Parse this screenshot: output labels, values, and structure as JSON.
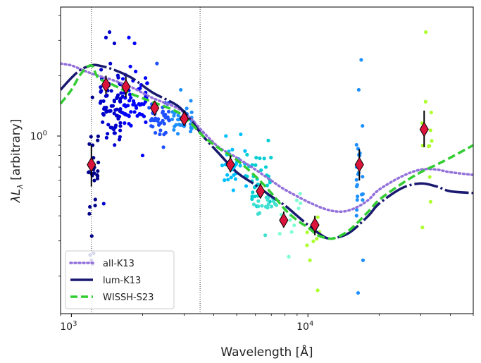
{
  "chart_data": {
    "type": "scatter",
    "xlabel": "Wavelength [Å]",
    "ylabel": "λL",
    "ylabel_sub": "λ",
    "ylabel_rest": " [arbitrary]",
    "xscale": "log",
    "yscale": "log",
    "xlim": [
      900,
      50000
    ],
    "ylim": [
      0.13,
      4.4
    ],
    "x_ticks": [
      {
        "value": 1000,
        "base": "10",
        "exp": "3"
      },
      {
        "value": 10000,
        "base": "10",
        "exp": "4"
      }
    ],
    "y_ticks": [
      {
        "value": 1.0,
        "label": "10",
        "exp": "0"
      }
    ],
    "vlines": [
      1215,
      3500
    ],
    "legend": {
      "placement": "lower-left",
      "entries": [
        {
          "label": "all-K13",
          "color": "#9370db",
          "style": "dotted"
        },
        {
          "label": "lum-K13",
          "color": "#191970",
          "style": "solid"
        },
        {
          "label": "WISSH-S23",
          "color": "#32cd32",
          "style": "dashed"
        }
      ]
    },
    "series": [
      {
        "name": "all-K13",
        "color": "#9370db",
        "style": "dotted",
        "x": [
          900,
          1000,
          1100,
          1215,
          1300,
          1500,
          1800,
          2200,
          2800,
          3200,
          3600,
          4200,
          5000,
          6000,
          7000,
          8000,
          10000,
          12000,
          14000,
          16000,
          18000,
          20000,
          25000,
          30000,
          35000,
          40000,
          50000
        ],
        "y": [
          2.3,
          2.25,
          2.15,
          2.05,
          2.0,
          1.9,
          1.75,
          1.55,
          1.38,
          1.22,
          1.05,
          0.88,
          0.78,
          0.68,
          0.6,
          0.54,
          0.47,
          0.43,
          0.42,
          0.44,
          0.48,
          0.54,
          0.63,
          0.68,
          0.68,
          0.66,
          0.64
        ]
      },
      {
        "name": "lum-K13",
        "color": "#191970",
        "style": "solid",
        "x": [
          900,
          1000,
          1100,
          1215,
          1300,
          1500,
          1800,
          2200,
          2800,
          3200,
          3600,
          4200,
          5000,
          6000,
          7000,
          8000,
          9000,
          10000,
          11000,
          12000,
          13000,
          15000,
          18000,
          20000,
          25000,
          30000,
          35000,
          40000,
          50000
        ],
        "y": [
          1.7,
          1.95,
          2.15,
          2.25,
          2.25,
          2.15,
          1.95,
          1.65,
          1.42,
          1.2,
          1.0,
          0.82,
          0.66,
          0.57,
          0.5,
          0.45,
          0.4,
          0.36,
          0.33,
          0.31,
          0.31,
          0.33,
          0.4,
          0.46,
          0.55,
          0.58,
          0.56,
          0.53,
          0.52
        ]
      },
      {
        "name": "WISSH-S23",
        "color": "#32cd32",
        "style": "dashed",
        "x": [
          900,
          1000,
          1100,
          1215,
          1300,
          1500,
          1800,
          2200,
          2800,
          3200,
          3600,
          4200,
          5000,
          6000,
          7000,
          8000,
          9000,
          10000,
          11000,
          12000,
          13000,
          15000,
          18000,
          20000,
          25000,
          30000,
          35000,
          40000,
          50000
        ],
        "y": [
          1.45,
          1.7,
          2.05,
          2.25,
          1.95,
          1.8,
          1.62,
          1.48,
          1.32,
          1.16,
          1.0,
          0.87,
          0.76,
          0.63,
          0.52,
          0.43,
          0.38,
          0.35,
          0.32,
          0.31,
          0.31,
          0.34,
          0.42,
          0.48,
          0.58,
          0.66,
          0.72,
          0.78,
          0.9
        ]
      }
    ],
    "binned_points": [
      {
        "x": 1215,
        "y": 0.72,
        "yerr_low": 0.56,
        "yerr_high": 0.9
      },
      {
        "x": 1400,
        "y": 1.8,
        "yerr_low": 1.62,
        "yerr_high": 2.0
      },
      {
        "x": 1700,
        "y": 1.76,
        "yerr_low": 1.56,
        "yerr_high": 1.98
      },
      {
        "x": 2250,
        "y": 1.38,
        "yerr_low": 1.26,
        "yerr_high": 1.5
      },
      {
        "x": 3000,
        "y": 1.22,
        "yerr_low": 1.12,
        "yerr_high": 1.34
      },
      {
        "x": 4700,
        "y": 0.72,
        "yerr_low": 0.66,
        "yerr_high": 0.8
      },
      {
        "x": 6300,
        "y": 0.53,
        "yerr_low": 0.49,
        "yerr_high": 0.58
      },
      {
        "x": 7900,
        "y": 0.38,
        "yerr_low": 0.35,
        "yerr_high": 0.42
      },
      {
        "x": 10700,
        "y": 0.36,
        "yerr_low": 0.32,
        "yerr_high": 0.4
      },
      {
        "x": 16500,
        "y": 0.72,
        "yerr_low": 0.6,
        "yerr_high": 0.86
      },
      {
        "x": 31000,
        "y": 1.08,
        "yerr_low": 0.88,
        "yerr_high": 1.34
      }
    ],
    "scatter_groups": [
      {
        "color": "#00008b",
        "x_range": [
          1180,
          1300
        ],
        "y_range": [
          0.22,
          2.3
        ],
        "n": 22,
        "extra": [
          [
            1200,
            0.255
          ],
          [
            1215,
            0.24
          ],
          [
            1230,
            0.23
          ],
          [
            1240,
            0.26
          ],
          [
            1260,
            0.45
          ],
          [
            1250,
            0.6
          ],
          [
            1230,
            0.9
          ]
        ]
      },
      {
        "color": "#0000cd",
        "x_range": [
          1320,
          1650
        ],
        "y_range": [
          0.8,
          2.6
        ],
        "n": 70,
        "extra": [
          [
            1400,
            3.1
          ],
          [
            1450,
            3.3
          ],
          [
            1520,
            2.9
          ],
          [
            1370,
            0.46
          ]
        ]
      },
      {
        "color": "#0000ff",
        "x_range": [
          1650,
          2100
        ],
        "y_range": [
          0.9,
          2.4
        ],
        "n": 60,
        "extra": [
          [
            1750,
            3.1
          ],
          [
            1850,
            2.9
          ],
          [
            2000,
            0.8
          ]
        ]
      },
      {
        "color": "#1e50ff",
        "x_range": [
          2100,
          2600
        ],
        "y_range": [
          0.9,
          1.8
        ],
        "n": 40,
        "extra": [
          [
            2300,
            2.3
          ],
          [
            2450,
            0.88
          ]
        ]
      },
      {
        "color": "#1e90ff",
        "x_range": [
          2600,
          3300
        ],
        "y_range": [
          0.95,
          1.55
        ],
        "n": 35,
        "extra": [
          [
            2900,
            1.7
          ],
          [
            3200,
            1.5
          ]
        ]
      },
      {
        "color": "#00bfff",
        "x_range": [
          4300,
          5500
        ],
        "y_range": [
          0.5,
          0.98
        ],
        "n": 30,
        "extra": [
          [
            4500,
            1.0
          ],
          [
            5200,
            1.02
          ]
        ]
      },
      {
        "color": "#00ced1",
        "x_range": [
          5500,
          7000
        ],
        "y_range": [
          0.4,
          0.85
        ],
        "n": 30,
        "extra": [
          [
            6800,
            0.95
          ]
        ]
      },
      {
        "color": "#40e0d0",
        "x_range": [
          5800,
          7400
        ],
        "y_range": [
          0.37,
          0.55
        ],
        "n": 20,
        "extra": [
          [
            6600,
            0.32
          ]
        ]
      },
      {
        "color": "#7fffd4",
        "x_range": [
          7500,
          9500
        ],
        "y_range": [
          0.28,
          0.62
        ],
        "n": 12,
        "extra": [
          [
            8300,
            0.25
          ]
        ]
      },
      {
        "color": "#adff2f",
        "x_range": [
          9800,
          11500
        ],
        "y_range": [
          0.22,
          0.5
        ],
        "n": 8,
        "extra": [
          [
            10200,
            0.24
          ],
          [
            11000,
            0.17
          ]
        ]
      },
      {
        "color": "#1e90ff",
        "x_range": [
          16000,
          17200
        ],
        "y_range": [
          0.3,
          1.3
        ],
        "n": 20,
        "extra": [
          [
            16400,
            1.7
          ],
          [
            16800,
            2.4
          ],
          [
            16300,
            0.165
          ],
          [
            17100,
            0.24
          ],
          [
            16200,
            0.5
          ]
        ]
      },
      {
        "color": "#adff2f",
        "x_range": [
          29500,
          33500
        ],
        "y_range": [
          0.5,
          2.4
        ],
        "n": 9,
        "extra": [
          [
            31500,
            3.3
          ],
          [
            30500,
            0.35
          ],
          [
            33000,
            0.47
          ]
        ]
      }
    ]
  }
}
